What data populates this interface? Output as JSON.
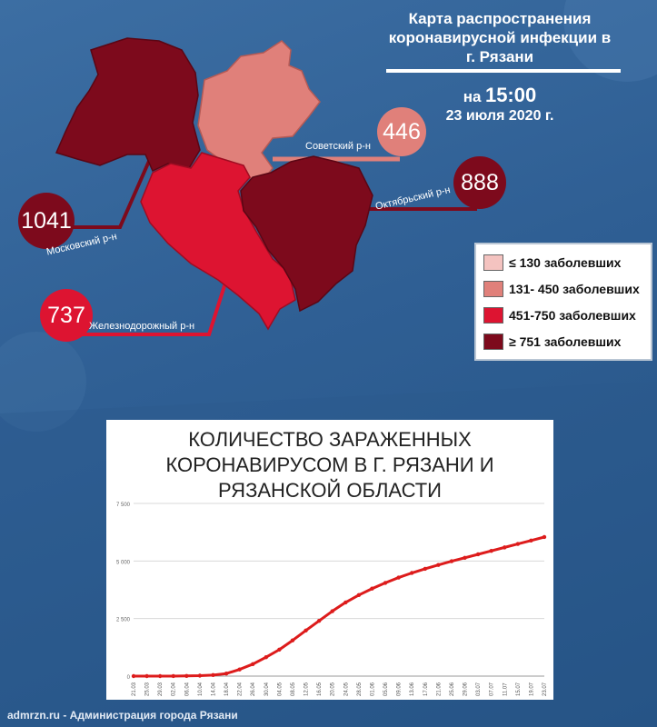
{
  "header": {
    "title_lines": [
      "Карта распространения",
      "коронавирусной инфекции  в",
      "г. Рязани"
    ],
    "time_prefix": "на",
    "time": "15:00",
    "date": "23 июля 2020 г."
  },
  "districts": [
    {
      "id": "sovetsky",
      "name": "Советский р-н",
      "count": "446",
      "color": "#e0807a"
    },
    {
      "id": "oktyabrsky",
      "name": "Октябрьский р-н",
      "count": "888",
      "color": "#7d0a1c"
    },
    {
      "id": "moskovsky",
      "name": "Московский р-н",
      "count": "1041",
      "color": "#7d0a1c"
    },
    {
      "id": "zheleznodorozhny",
      "name": "Железнодорожный р-н",
      "count": "737",
      "color": "#dd1431"
    }
  ],
  "legend": [
    {
      "label": "≤ 130 заболевших",
      "color": "#f4c3c0"
    },
    {
      "label": "131- 450 заболевших",
      "color": "#e0807a"
    },
    {
      "label": "451-750 заболевших",
      "color": "#dd1431"
    },
    {
      "label": "≥ 751 заболевших",
      "color": "#7d0a1c"
    }
  ],
  "chart_data": {
    "type": "line",
    "title": "КОЛИЧЕСТВО ЗАРАЖЕННЫХ КОРОНАВИРУСОМ В Г. РЯЗАНИ И РЯЗАНСКОЙ ОБЛАСТИ",
    "title_lines": [
      "КОЛИЧЕСТВО ЗАРАЖЕННЫХ",
      "КОРОНАВИРУСОМ В Г. РЯЗАНИ И",
      "РЯЗАНСКОЙ ОБЛАСТИ"
    ],
    "xlabel": "",
    "ylabel": "",
    "ylim": [
      0,
      7500
    ],
    "yticks": [
      "0",
      "2 500",
      "5 000",
      "7 500"
    ],
    "ytick_values": [
      0,
      2500,
      5000,
      7500
    ],
    "grid": true,
    "line_color": "#dd1c1c",
    "x": [
      "21.03",
      "25.03",
      "29.03",
      "02.04",
      "06.04",
      "10.04",
      "14.04",
      "18.04",
      "22.04",
      "26.04",
      "30.04",
      "04.05",
      "08.05",
      "12.05",
      "16.05",
      "20.05",
      "24.05",
      "28.05",
      "01.06",
      "05.06",
      "09.06",
      "13.06",
      "17.06",
      "21.06",
      "25.06",
      "29.06",
      "03.07",
      "07.07",
      "11.07",
      "15.07",
      "19.07",
      "23.07"
    ],
    "series": [
      {
        "values": [
          0,
          0,
          0,
          2,
          8,
          20,
          45,
          110,
          290,
          520,
          820,
          1150,
          1550,
          1980,
          2400,
          2820,
          3200,
          3520,
          3800,
          4050,
          4280,
          4480,
          4660,
          4830,
          4990,
          5140,
          5290,
          5440,
          5590,
          5740,
          5890,
          6040
        ]
      }
    ]
  },
  "footer": {
    "text": "admrzn.ru - Администрация города Рязани"
  }
}
